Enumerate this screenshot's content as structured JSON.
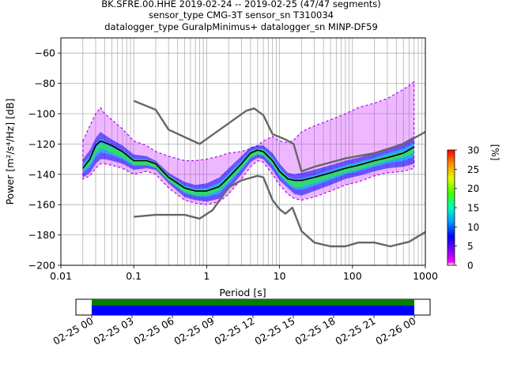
{
  "chart_data": {
    "type": "heatmap",
    "title_lines": [
      "BK.SFRE.00.HHE   2019-02-24 -- 2019-02-25  (47/47 segments)",
      "sensor_type CMG-3T sensor_sn T310034",
      "datalogger_type GuralpMinimus+ datalogger_sn MINP-DF59"
    ],
    "xlabel": "Period [s]",
    "ylabel": "Power [m²/s⁴/Hz] [dB]",
    "xscale": "log",
    "xlim": [
      0.01,
      1000
    ],
    "ylim": [
      -200,
      -50
    ],
    "x_ticks": [
      0.01,
      0.1,
      1,
      10,
      100,
      1000
    ],
    "x_tick_labels": [
      "0.01",
      "0.1",
      "1",
      "10",
      "100",
      "1000"
    ],
    "y_ticks": [
      -200,
      -180,
      -160,
      -140,
      -120,
      -100,
      -80,
      -60
    ],
    "grid": true,
    "colorbar": {
      "label": "[%]",
      "ticks": [
        0,
        5,
        10,
        15,
        20,
        25,
        30
      ],
      "range": [
        0,
        30
      ],
      "colormap": "pqlx"
    },
    "series": [
      {
        "role": "noise-model-high",
        "color": "#666666",
        "x": [
          0.1,
          0.2,
          0.3,
          0.8,
          3.5,
          4.5,
          6,
          8,
          12,
          15.6,
          20,
          30,
          80,
          200,
          500,
          1000
        ],
        "y": [
          -91.5,
          -97.4,
          -110.5,
          -120.0,
          -98.0,
          -96.5,
          -101.0,
          -113.5,
          -117.0,
          -120.0,
          -138.0,
          -135.0,
          -129.5,
          -126.0,
          -120.0,
          -112.0
        ]
      },
      {
        "role": "noise-model-low",
        "color": "#666666",
        "x": [
          0.1,
          0.2,
          0.5,
          0.8,
          1.2,
          2,
          3,
          5,
          6,
          7,
          8,
          10,
          12,
          15,
          20,
          30,
          50,
          80,
          120,
          200,
          330,
          600,
          1000
        ],
        "y": [
          -168.0,
          -166.7,
          -166.7,
          -169.2,
          -163.7,
          -148.6,
          -144.0,
          -141.0,
          -142.0,
          -150.0,
          -157.0,
          -163.0,
          -166.0,
          -162.0,
          -177.5,
          -185.0,
          -187.5,
          -187.5,
          -185.0,
          -185.0,
          -187.5,
          -184.5,
          -178.0
        ]
      },
      {
        "role": "mean",
        "color": "#000000",
        "x": [
          0.02,
          0.025,
          0.03,
          0.035,
          0.04,
          0.05,
          0.07,
          0.1,
          0.15,
          0.2,
          0.3,
          0.5,
          0.7,
          1,
          1.5,
          2,
          3,
          4,
          5,
          6,
          8,
          10,
          13,
          16,
          20,
          30,
          50,
          80,
          120,
          200,
          300,
          500,
          700
        ],
        "y": [
          -136,
          -130,
          -121,
          -118,
          -119,
          -121,
          -125,
          -131,
          -131,
          -133,
          -142,
          -149,
          -151,
          -151,
          -148,
          -142,
          -133,
          -126,
          -124,
          -125,
          -131,
          -138,
          -143,
          -144,
          -144,
          -142,
          -139,
          -136,
          -134,
          -131,
          -129,
          -126,
          -122
        ]
      }
    ],
    "psd_bands": [
      {
        "role": "core",
        "x": [
          0.02,
          0.025,
          0.03,
          0.035,
          0.04,
          0.05,
          0.07,
          0.1,
          0.15,
          0.2,
          0.3,
          0.5,
          0.7,
          1,
          1.5,
          2,
          3,
          4,
          5,
          6,
          8,
          10,
          13,
          16,
          20,
          30,
          50,
          80,
          120,
          200,
          300,
          500,
          700
        ],
        "lower": [
          -142,
          -139,
          -133,
          -130,
          -130,
          -131,
          -133,
          -137,
          -136,
          -137,
          -146,
          -155,
          -157,
          -158,
          -156,
          -150,
          -140,
          -132,
          -129,
          -130,
          -137,
          -144,
          -149,
          -153,
          -154,
          -151,
          -147,
          -143,
          -141,
          -138,
          -136,
          -135,
          -133
        ],
        "upper": [
          -130,
          -124,
          -116,
          -112,
          -114,
          -117,
          -121,
          -127,
          -128,
          -131,
          -139,
          -145,
          -147,
          -146,
          -142,
          -136,
          -128,
          -122,
          -121,
          -121,
          -126,
          -133,
          -139,
          -140,
          -139,
          -137,
          -134,
          -131,
          -129,
          -126,
          -123,
          -119,
          -115
        ]
      },
      {
        "role": "outer",
        "x": [
          0.02,
          0.025,
          0.03,
          0.035,
          0.04,
          0.05,
          0.07,
          0.1,
          0.15,
          0.2,
          0.3,
          0.5,
          0.7,
          1,
          1.5,
          2,
          3,
          4,
          5,
          6,
          8,
          10,
          13,
          16,
          20,
          30,
          50,
          80,
          120,
          200,
          300,
          500,
          700
        ],
        "lower": [
          -143,
          -141,
          -136,
          -133,
          -133,
          -134,
          -136,
          -140,
          -138,
          -140,
          -149,
          -157,
          -159,
          -160,
          -158,
          -153,
          -143,
          -135,
          -131,
          -132,
          -140,
          -147,
          -153,
          -156,
          -157,
          -155,
          -151,
          -147,
          -145,
          -141,
          -139,
          -138,
          -136
        ],
        "upper": [
          -118,
          -108,
          -100,
          -96,
          -100,
          -104,
          -110,
          -118,
          -121,
          -125,
          -128,
          -131,
          -131,
          -130,
          -128,
          -126,
          -125,
          -123,
          -121,
          -118,
          -115,
          -118,
          -119,
          -117,
          -112,
          -108,
          -104,
          -100,
          -96,
          -93,
          -90,
          -84,
          -79
        ]
      }
    ],
    "timeline": {
      "start_label": "02-25 00",
      "tick_labels": [
        "02-25 00",
        "02-25 03",
        "02-25 06",
        "02-25 09",
        "02-25 12",
        "02-25 15",
        "02-25 18",
        "02-25 21",
        "02-26 00"
      ],
      "bar_colors": [
        "#008000",
        "#0000ff"
      ]
    }
  }
}
